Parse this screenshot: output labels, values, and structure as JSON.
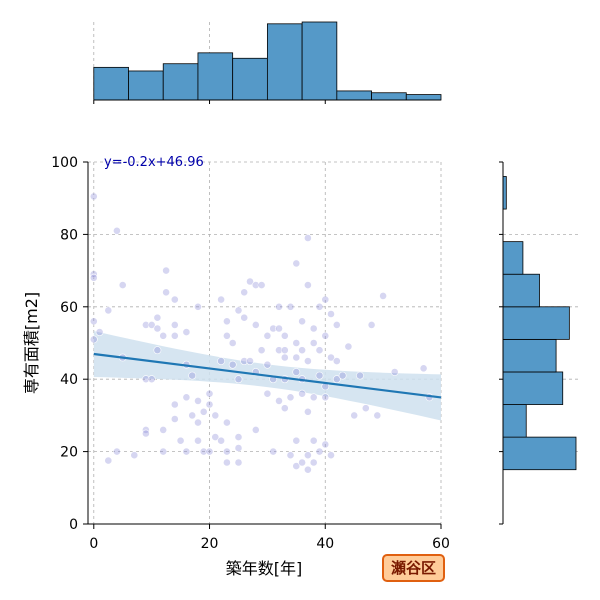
{
  "chart_data": {
    "type": "scatter",
    "subtype": "jointplot with marginal histograms and linear regression",
    "xlabel": "築年数[年]",
    "ylabel": "専有面積[m2]",
    "xlim": [
      -1,
      60
    ],
    "ylim": [
      0,
      100
    ],
    "xticks": [
      0,
      20,
      40,
      60
    ],
    "yticks": [
      0,
      20,
      40,
      60,
      80,
      100
    ],
    "top_hist_xticks": [
      0,
      20,
      40
    ],
    "grid": true,
    "annotation": "y=-0.2x+46.96",
    "badge": "瀬谷区",
    "regression": {
      "slope": -0.2,
      "intercept": 46.96,
      "x_range": [
        0,
        60
      ],
      "ci_color": "#cfe0ef"
    },
    "colors": {
      "points": "#8a8ad8",
      "line": "#1f77b4",
      "bars": "#5599c8",
      "badge_bg": "#ffcc99",
      "badge_border": "#e06010",
      "annotation": "#0000aa"
    },
    "top_histogram": {
      "bin_edges": [
        0,
        6,
        12,
        18,
        24,
        30,
        36,
        42,
        48,
        54,
        60
      ],
      "counts": [
        18,
        16,
        20,
        26,
        23,
        42,
        43,
        5,
        4,
        3
      ]
    },
    "right_histogram": {
      "bin_edges": [
        15,
        24,
        33,
        42,
        51,
        60,
        69,
        78,
        87,
        96
      ],
      "counts": [
        22,
        7,
        18,
        16,
        20,
        11,
        6,
        0,
        1
      ]
    },
    "points": [
      [
        0,
        90.5
      ],
      [
        0,
        69
      ],
      [
        0,
        68
      ],
      [
        0,
        56
      ],
      [
        1,
        53
      ],
      [
        0,
        51
      ],
      [
        2.5,
        59
      ],
      [
        2.5,
        17.5
      ],
      [
        4,
        81
      ],
      [
        4,
        20
      ],
      [
        5,
        66
      ],
      [
        5,
        46
      ],
      [
        7,
        19
      ],
      [
        9,
        55
      ],
      [
        9,
        40
      ],
      [
        9,
        26
      ],
      [
        9,
        25
      ],
      [
        10,
        40
      ],
      [
        10,
        55
      ],
      [
        11,
        57
      ],
      [
        11,
        54
      ],
      [
        11,
        48
      ],
      [
        12,
        26
      ],
      [
        12,
        20
      ],
      [
        12,
        52
      ],
      [
        12.5,
        70
      ],
      [
        12.5,
        64
      ],
      [
        14,
        62
      ],
      [
        14,
        55
      ],
      [
        14,
        52
      ],
      [
        14,
        33
      ],
      [
        14,
        29
      ],
      [
        15,
        23
      ],
      [
        16,
        44
      ],
      [
        16,
        53
      ],
      [
        16,
        35
      ],
      [
        16,
        20
      ],
      [
        17,
        41
      ],
      [
        17,
        30
      ],
      [
        18,
        23
      ],
      [
        18,
        28
      ],
      [
        18,
        60
      ],
      [
        18,
        34
      ],
      [
        19,
        31
      ],
      [
        19,
        20
      ],
      [
        20,
        20
      ],
      [
        20,
        36
      ],
      [
        20,
        33
      ],
      [
        21,
        24
      ],
      [
        21,
        30
      ],
      [
        22,
        23
      ],
      [
        22,
        45
      ],
      [
        22,
        62
      ],
      [
        23,
        17
      ],
      [
        23,
        20
      ],
      [
        23,
        28
      ],
      [
        23,
        52
      ],
      [
        23,
        56
      ],
      [
        24,
        44
      ],
      [
        24,
        50
      ],
      [
        25,
        24
      ],
      [
        25,
        17
      ],
      [
        25,
        21
      ],
      [
        25,
        40
      ],
      [
        25,
        59
      ],
      [
        26,
        45
      ],
      [
        26,
        64
      ],
      [
        26,
        57
      ],
      [
        27,
        67
      ],
      [
        27,
        45
      ],
      [
        28,
        66
      ],
      [
        28,
        55
      ],
      [
        28,
        26
      ],
      [
        28,
        42
      ],
      [
        29,
        66
      ],
      [
        29,
        48
      ],
      [
        30,
        36
      ],
      [
        30,
        44
      ],
      [
        30,
        52
      ],
      [
        31,
        54
      ],
      [
        31,
        40
      ],
      [
        31,
        20
      ],
      [
        32,
        48
      ],
      [
        32,
        34
      ],
      [
        32,
        54
      ],
      [
        32,
        60
      ],
      [
        33,
        52
      ],
      [
        33,
        48
      ],
      [
        33,
        46
      ],
      [
        33,
        40
      ],
      [
        33,
        32
      ],
      [
        34,
        35
      ],
      [
        34,
        19
      ],
      [
        34,
        60
      ],
      [
        35,
        72
      ],
      [
        35,
        16
      ],
      [
        35,
        50
      ],
      [
        35,
        42
      ],
      [
        35,
        46
      ],
      [
        35,
        23
      ],
      [
        36,
        40
      ],
      [
        36,
        36
      ],
      [
        36,
        48
      ],
      [
        36,
        17
      ],
      [
        36,
        56
      ],
      [
        37,
        79
      ],
      [
        37,
        66
      ],
      [
        37,
        45
      ],
      [
        37,
        31
      ],
      [
        37,
        19
      ],
      [
        37,
        15
      ],
      [
        38,
        23
      ],
      [
        38,
        35
      ],
      [
        38,
        54
      ],
      [
        38,
        50
      ],
      [
        38,
        17
      ],
      [
        39,
        48
      ],
      [
        39,
        41
      ],
      [
        39,
        20
      ],
      [
        39,
        60
      ],
      [
        40,
        62
      ],
      [
        40,
        35
      ],
      [
        40,
        38
      ],
      [
        40,
        22
      ],
      [
        40,
        52
      ],
      [
        41,
        58
      ],
      [
        41,
        46
      ],
      [
        41,
        19
      ],
      [
        42,
        55
      ],
      [
        42,
        45
      ],
      [
        42,
        40
      ],
      [
        43,
        41
      ],
      [
        44,
        49
      ],
      [
        45,
        30
      ],
      [
        46,
        41
      ],
      [
        47,
        32
      ],
      [
        48,
        55
      ],
      [
        49,
        30
      ],
      [
        50,
        63
      ],
      [
        52,
        42
      ],
      [
        57,
        43
      ],
      [
        58,
        35
      ]
    ]
  }
}
